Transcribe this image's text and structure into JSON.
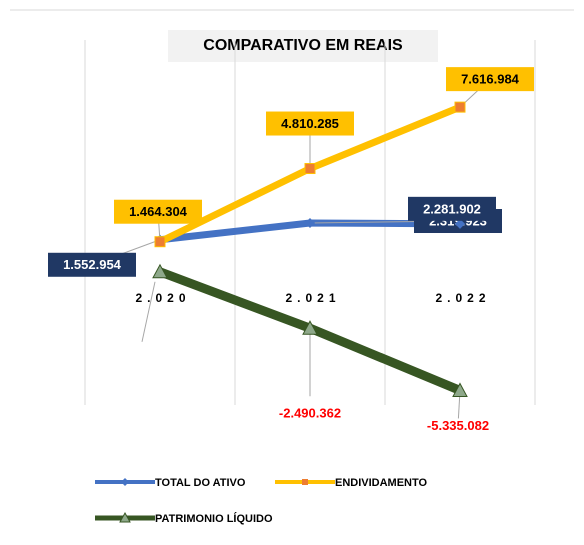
{
  "chart_data": {
    "type": "line",
    "title": "COMPARATIVO  EM REAIS",
    "categories": [
      "2.020",
      "2.021",
      "2.022"
    ],
    "series": [
      {
        "name": "TOTAL DO ATIVO",
        "color": "#4472c4",
        "values": [
          1552954,
          2319923,
          2281902
        ],
        "value_labels": [
          "1.552.954",
          "2.319.923",
          "2.281.902"
        ]
      },
      {
        "name": "ENDIVIDAMENTO",
        "color": "#ffc000",
        "values": [
          1464304,
          4810285,
          7616984
        ],
        "value_labels": [
          "1.464.304",
          "4.810.285",
          "7.616.984"
        ]
      },
      {
        "name": "PATRIMONIO LÍQUIDO",
        "color": "#375623",
        "values": [
          88650,
          -2490362,
          -5335082
        ],
        "value_labels": [
          null,
          "-2.490.362",
          "-5.335.082"
        ]
      }
    ],
    "ylim": [
      -6000000,
      10000000
    ],
    "grid": true,
    "legend": "bottom"
  }
}
